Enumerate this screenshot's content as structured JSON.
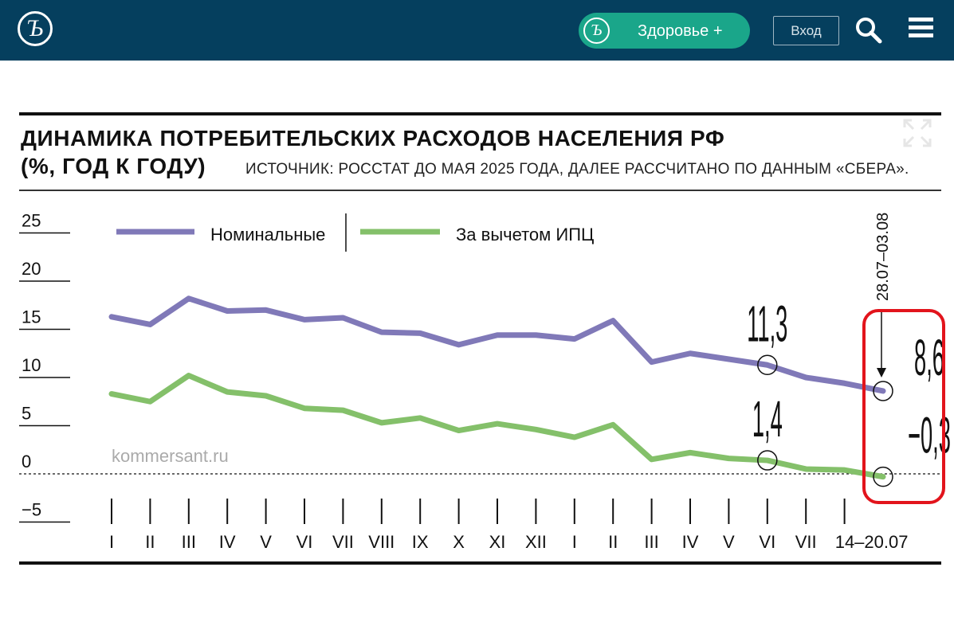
{
  "header": {
    "logo_glyph": "Ъ",
    "health_button_label": "Здоровье +",
    "login_label": "Вход",
    "bg_color": "#053f5e",
    "accent_color": "#1aa68a"
  },
  "chart_meta": {
    "title_line1": "ДИНАМИКА ПОТРЕБИТЕЛЬСКИХ РАСХОДОВ НАСЕЛЕНИЯ РФ",
    "title_line2": "(%, ГОД К ГОДУ)",
    "source": "ИСТОЧНИК: РОССТАТ ДО МАЯ 2025 ГОДА, ДАЛЕЕ РАССЧИТАНО ПО ДАННЫМ «СБЕРА».",
    "watermark": "kommersant.ru",
    "period_label": "28.07–03.08"
  },
  "chart_data": {
    "type": "line",
    "x": [
      "I",
      "II",
      "III",
      "IV",
      "V",
      "VI",
      "VII",
      "VIII",
      "IX",
      "X",
      "XI",
      "XII",
      "I",
      "II",
      "III",
      "IV",
      "V",
      "VI",
      "VII",
      "14–20.07",
      "28.07–03.08"
    ],
    "series": [
      {
        "name": "Номинальные",
        "color": "#8079b8",
        "values": [
          16.3,
          15.5,
          18.2,
          16.9,
          17.0,
          16.0,
          16.2,
          14.7,
          14.6,
          13.4,
          14.4,
          14.4,
          14.0,
          15.9,
          11.6,
          12.5,
          11.9,
          11.3,
          10.0,
          9.4,
          8.6
        ]
      },
      {
        "name": "За вычетом ИПЦ",
        "color": "#84c06a",
        "values": [
          8.3,
          7.5,
          10.2,
          8.5,
          8.1,
          6.8,
          6.6,
          5.3,
          5.8,
          4.5,
          5.2,
          4.6,
          3.8,
          5.1,
          1.5,
          2.2,
          1.6,
          1.4,
          0.5,
          0.4,
          -0.3
        ]
      }
    ],
    "annotations": [
      {
        "series": 0,
        "index": 17,
        "label": "11,3"
      },
      {
        "series": 1,
        "index": 17,
        "label": "1,4"
      },
      {
        "series": 0,
        "index": 20,
        "label": "8,6"
      },
      {
        "series": 1,
        "index": 20,
        "label": "−0,3"
      }
    ],
    "y_ticks": [
      "25",
      "20",
      "15",
      "10",
      "5",
      "0",
      "−5"
    ],
    "ylim": [
      -5,
      25
    ],
    "legend": "top-left",
    "highlight_color": "#e2141c"
  }
}
